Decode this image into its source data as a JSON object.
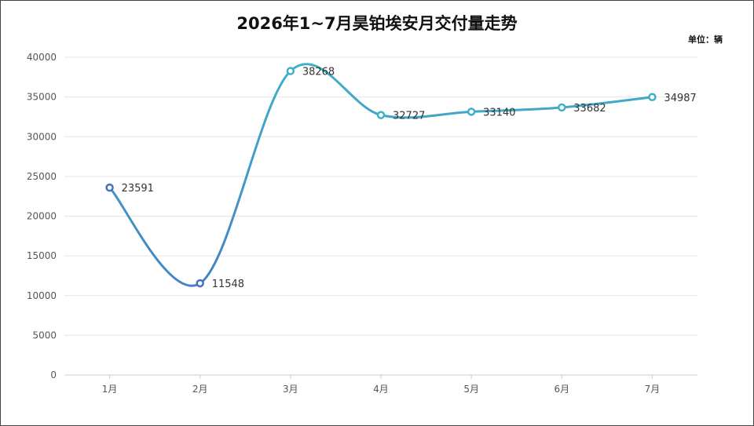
{
  "chart_data": {
    "type": "line",
    "title": "2026年1~7月昊铂埃安月交付量走势",
    "unit_label": "单位：辆",
    "categories": [
      "1月",
      "2月",
      "3月",
      "4月",
      "5月",
      "6月",
      "7月"
    ],
    "series": [
      {
        "values": [
          23591,
          11548,
          38268,
          32727,
          33140,
          33682,
          34987
        ]
      }
    ],
    "ylim": [
      0,
      40000
    ],
    "yticks": [
      0,
      5000,
      10000,
      15000,
      20000,
      25000,
      30000,
      35000,
      40000
    ],
    "grid": true,
    "smooth": true,
    "colors": {
      "line_start": "#4a6fc0",
      "line_end": "#3fb0c8",
      "marker_fill": "#ffffff",
      "grid": "#e6e6e6"
    }
  }
}
